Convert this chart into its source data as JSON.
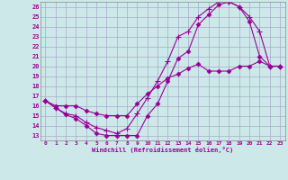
{
  "xlabel": "Windchill (Refroidissement éolien,°C)",
  "xlim": [
    -0.5,
    23.5
  ],
  "ylim": [
    12.5,
    26.5
  ],
  "yticks": [
    13,
    14,
    15,
    16,
    17,
    18,
    19,
    20,
    21,
    22,
    23,
    24,
    25,
    26
  ],
  "xticks": [
    0,
    1,
    2,
    3,
    4,
    5,
    6,
    7,
    8,
    9,
    10,
    11,
    12,
    13,
    14,
    15,
    16,
    17,
    18,
    19,
    20,
    21,
    22,
    23
  ],
  "bg_color": "#cce8e8",
  "line_color": "#990099",
  "grid_color": "#aacccc",
  "curve1_x": [
    0,
    1,
    2,
    3,
    4,
    5,
    6,
    7,
    8,
    9,
    10,
    11,
    12,
    13,
    14,
    15,
    16,
    17,
    18,
    19,
    20,
    21,
    22,
    23
  ],
  "curve1_y": [
    16.5,
    15.8,
    15.1,
    14.7,
    14.0,
    13.2,
    13.0,
    13.0,
    13.0,
    13.0,
    15.0,
    16.2,
    18.5,
    20.8,
    21.5,
    24.2,
    25.2,
    26.2,
    26.5,
    26.0,
    24.5,
    21.0,
    20.0,
    20.0
  ],
  "curve2_x": [
    0,
    1,
    2,
    3,
    4,
    5,
    6,
    7,
    8,
    9,
    10,
    11,
    12,
    13,
    14,
    15,
    16,
    17,
    18,
    19,
    20,
    21,
    22,
    23
  ],
  "curve2_y": [
    16.5,
    15.8,
    15.2,
    15.0,
    14.3,
    13.8,
    13.5,
    13.2,
    13.7,
    15.2,
    16.8,
    18.5,
    20.5,
    23.0,
    23.5,
    25.0,
    25.8,
    26.5,
    26.5,
    26.0,
    25.0,
    23.5,
    20.0,
    20.0
  ],
  "curve3_x": [
    0,
    1,
    2,
    3,
    4,
    5,
    6,
    7,
    8,
    9,
    10,
    11,
    12,
    13,
    14,
    15,
    16,
    17,
    18,
    19,
    20,
    21,
    22,
    23
  ],
  "curve3_y": [
    16.5,
    16.0,
    16.0,
    16.0,
    15.5,
    15.2,
    15.0,
    15.0,
    15.0,
    16.2,
    17.2,
    18.0,
    18.8,
    19.2,
    19.8,
    20.2,
    19.5,
    19.5,
    19.5,
    20.0,
    20.0,
    20.5,
    20.0,
    20.0
  ]
}
